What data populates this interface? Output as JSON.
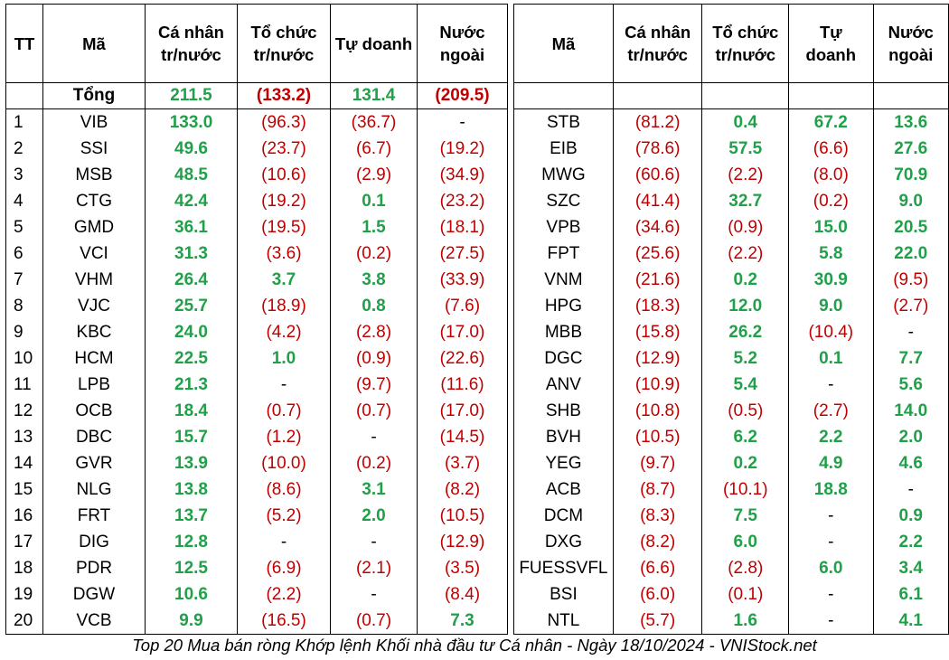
{
  "headers": {
    "tt": "TT",
    "ma": "Mã",
    "ca_nhan_1": "Cá nhân",
    "ca_nhan_2": "tr/nước",
    "to_chuc_1": "Tổ chức",
    "to_chuc_2": "tr/nước",
    "tu_doanh": "Tự doanh",
    "tu_1": "Tự",
    "tu_2": "doanh",
    "nuoc_ngoai_1": "Nước",
    "nuoc_ngoai_2": "ngoài"
  },
  "total": {
    "label": "Tổng",
    "ca_nhan": "211.5",
    "to_chuc": "(133.2)",
    "tu_doanh": "131.4",
    "nuoc_ngoai": "(209.5)"
  },
  "left_rows": [
    {
      "tt": "1",
      "ma": "VIB",
      "cn": "133.0",
      "tc": "(96.3)",
      "td": "(36.7)",
      "nn": "-"
    },
    {
      "tt": "2",
      "ma": "SSI",
      "cn": "49.6",
      "tc": "(23.7)",
      "td": "(6.7)",
      "nn": "(19.2)"
    },
    {
      "tt": "3",
      "ma": "MSB",
      "cn": "48.5",
      "tc": "(10.6)",
      "td": "(2.9)",
      "nn": "(34.9)"
    },
    {
      "tt": "4",
      "ma": "CTG",
      "cn": "42.4",
      "tc": "(19.2)",
      "td": "0.1",
      "nn": "(23.2)"
    },
    {
      "tt": "5",
      "ma": "GMD",
      "cn": "36.1",
      "tc": "(19.5)",
      "td": "1.5",
      "nn": "(18.1)"
    },
    {
      "tt": "6",
      "ma": "VCI",
      "cn": "31.3",
      "tc": "(3.6)",
      "td": "(0.2)",
      "nn": "(27.5)"
    },
    {
      "tt": "7",
      "ma": "VHM",
      "cn": "26.4",
      "tc": "3.7",
      "td": "3.8",
      "nn": "(33.9)"
    },
    {
      "tt": "8",
      "ma": "VJC",
      "cn": "25.7",
      "tc": "(18.9)",
      "td": "0.8",
      "nn": "(7.6)"
    },
    {
      "tt": "9",
      "ma": "KBC",
      "cn": "24.0",
      "tc": "(4.2)",
      "td": "(2.8)",
      "nn": "(17.0)"
    },
    {
      "tt": "10",
      "ma": "HCM",
      "cn": "22.5",
      "tc": "1.0",
      "td": "(0.9)",
      "nn": "(22.6)"
    },
    {
      "tt": "11",
      "ma": "LPB",
      "cn": "21.3",
      "tc": "-",
      "td": "(9.7)",
      "nn": "(11.6)"
    },
    {
      "tt": "12",
      "ma": "OCB",
      "cn": "18.4",
      "tc": "(0.7)",
      "td": "(0.7)",
      "nn": "(17.0)"
    },
    {
      "tt": "13",
      "ma": "DBC",
      "cn": "15.7",
      "tc": "(1.2)",
      "td": "-",
      "nn": "(14.5)"
    },
    {
      "tt": "14",
      "ma": "GVR",
      "cn": "13.9",
      "tc": "(10.0)",
      "td": "(0.2)",
      "nn": "(3.7)"
    },
    {
      "tt": "15",
      "ma": "NLG",
      "cn": "13.8",
      "tc": "(8.6)",
      "td": "3.1",
      "nn": "(8.2)"
    },
    {
      "tt": "16",
      "ma": "FRT",
      "cn": "13.7",
      "tc": "(5.2)",
      "td": "2.0",
      "nn": "(10.5)"
    },
    {
      "tt": "17",
      "ma": "DIG",
      "cn": "12.8",
      "tc": "-",
      "td": "-",
      "nn": "(12.9)"
    },
    {
      "tt": "18",
      "ma": "PDR",
      "cn": "12.5",
      "tc": "(6.9)",
      "td": "(2.1)",
      "nn": "(3.5)"
    },
    {
      "tt": "19",
      "ma": "DGW",
      "cn": "10.6",
      "tc": "(2.2)",
      "td": "-",
      "nn": "(8.4)"
    },
    {
      "tt": "20",
      "ma": "VCB",
      "cn": "9.9",
      "tc": "(16.5)",
      "td": "(0.7)",
      "nn": "7.3"
    }
  ],
  "right_rows": [
    {
      "ma": "STB",
      "cn": "(81.2)",
      "tc": "0.4",
      "td": "67.2",
      "nn": "13.6"
    },
    {
      "ma": "EIB",
      "cn": "(78.6)",
      "tc": "57.5",
      "td": "(6.6)",
      "nn": "27.6"
    },
    {
      "ma": "MWG",
      "cn": "(60.6)",
      "tc": "(2.2)",
      "td": "(8.0)",
      "nn": "70.9"
    },
    {
      "ma": "SZC",
      "cn": "(41.4)",
      "tc": "32.7",
      "td": "(0.2)",
      "nn": "9.0"
    },
    {
      "ma": "VPB",
      "cn": "(34.6)",
      "tc": "(0.9)",
      "td": "15.0",
      "nn": "20.5"
    },
    {
      "ma": "FPT",
      "cn": "(25.6)",
      "tc": "(2.2)",
      "td": "5.8",
      "nn": "22.0"
    },
    {
      "ma": "VNM",
      "cn": "(21.6)",
      "tc": "0.2",
      "td": "30.9",
      "nn": "(9.5)"
    },
    {
      "ma": "HPG",
      "cn": "(18.3)",
      "tc": "12.0",
      "td": "9.0",
      "nn": "(2.7)"
    },
    {
      "ma": "MBB",
      "cn": "(15.8)",
      "tc": "26.2",
      "td": "(10.4)",
      "nn": "-"
    },
    {
      "ma": "DGC",
      "cn": "(12.9)",
      "tc": "5.2",
      "td": "0.1",
      "nn": "7.7"
    },
    {
      "ma": "ANV",
      "cn": "(10.9)",
      "tc": "5.4",
      "td": "-",
      "nn": "5.6"
    },
    {
      "ma": "SHB",
      "cn": "(10.8)",
      "tc": "(0.5)",
      "td": "(2.7)",
      "nn": "14.0"
    },
    {
      "ma": "BVH",
      "cn": "(10.5)",
      "tc": "6.2",
      "td": "2.2",
      "nn": "2.0"
    },
    {
      "ma": "YEG",
      "cn": "(9.7)",
      "tc": "0.2",
      "td": "4.9",
      "nn": "4.6"
    },
    {
      "ma": "ACB",
      "cn": "(8.7)",
      "tc": "(10.1)",
      "td": "18.8",
      "nn": "-"
    },
    {
      "ma": "DCM",
      "cn": "(8.3)",
      "tc": "7.5",
      "td": "-",
      "nn": "0.9"
    },
    {
      "ma": "DXG",
      "cn": "(8.2)",
      "tc": "6.0",
      "td": "-",
      "nn": "2.2"
    },
    {
      "ma": "FUESSVFL",
      "cn": "(6.6)",
      "tc": "(2.8)",
      "td": "6.0",
      "nn": "3.4"
    },
    {
      "ma": "BSI",
      "cn": "(6.0)",
      "tc": "(0.1)",
      "td": "-",
      "nn": "6.1"
    },
    {
      "ma": "NTL",
      "cn": "(5.7)",
      "tc": "1.6",
      "td": "-",
      "nn": "4.1"
    }
  ],
  "caption": "Top 20 Mua bán ròng Khớp lệnh Khối nhà đầu tư Cá nhân - Ngày 18/10/2024 - VNIStock.net"
}
